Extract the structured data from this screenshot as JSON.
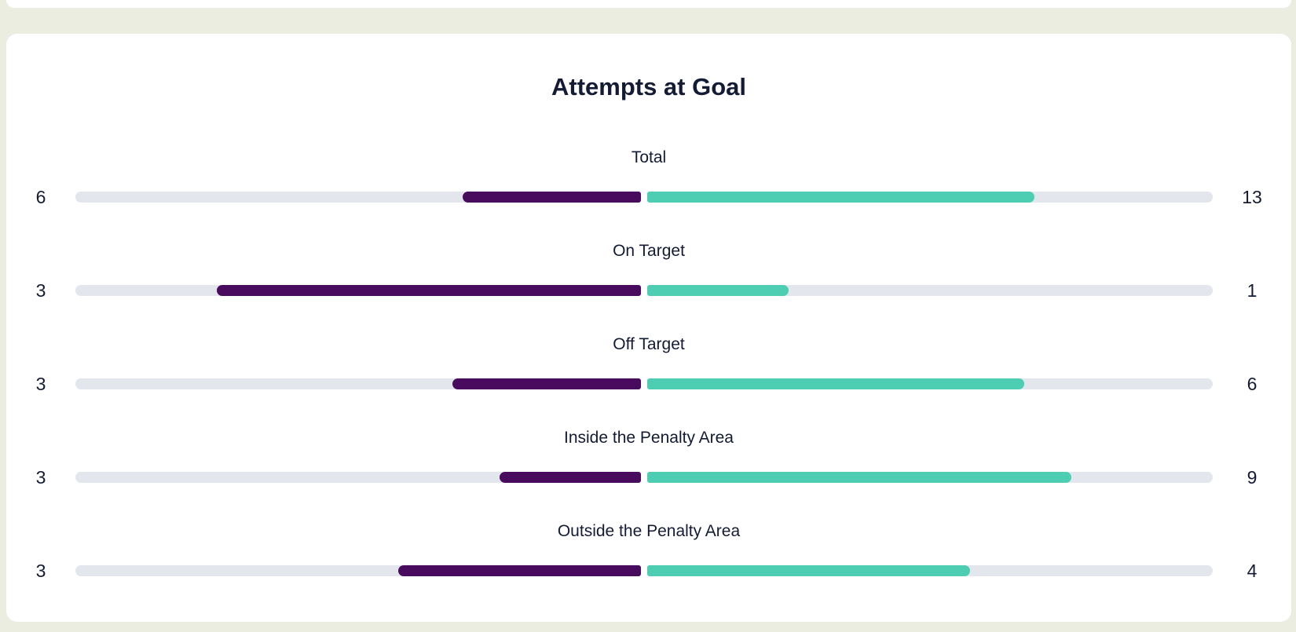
{
  "page": {
    "background_color": "#ecede1",
    "card_background_color": "#ffffff",
    "text_color": "#131b35"
  },
  "chart": {
    "title": "Attempts at Goal"
  },
  "chart_data": {
    "type": "bar",
    "variant": "bidirectional-horizontal-split",
    "title": "Attempts at Goal",
    "categories": [
      "Total",
      "On Target",
      "Off Target",
      "Inside the Penalty Area",
      "Outside the Penalty Area"
    ],
    "series": [
      {
        "name": "left-side",
        "color": "#490b5e",
        "values": [
          6,
          3,
          3,
          3,
          3
        ]
      },
      {
        "name": "right-side",
        "color": "#4dceb2",
        "values": [
          13,
          1,
          6,
          9,
          4
        ]
      }
    ],
    "track_color": "#e4e6ee",
    "value_labels": "at-row-ends",
    "bar_scale": "value-share-of-row-total",
    "legend": "none",
    "grid": "off"
  }
}
